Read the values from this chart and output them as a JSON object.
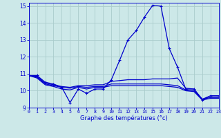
{
  "xlabel": "Graphe des températures (°c)",
  "background_color": "#cce8e8",
  "line_color": "#0000cc",
  "grid_color": "#aacccc",
  "xlim": [
    0,
    23
  ],
  "ylim": [
    9,
    15.2
  ],
  "yticks": [
    9,
    10,
    11,
    12,
    13,
    14,
    15
  ],
  "xticks": [
    0,
    1,
    2,
    3,
    4,
    5,
    6,
    7,
    8,
    9,
    10,
    11,
    12,
    13,
    14,
    15,
    16,
    17,
    18,
    19,
    20,
    21,
    22,
    23
  ],
  "curve1_x": [
    0,
    1,
    2,
    3,
    4,
    5,
    6,
    7,
    8,
    9,
    10,
    11,
    12,
    13,
    14,
    15,
    16,
    17,
    18,
    19,
    20,
    21,
    22,
    23
  ],
  "curve1_y": [
    10.9,
    10.9,
    10.5,
    10.4,
    10.2,
    9.3,
    10.1,
    9.85,
    10.1,
    10.1,
    10.65,
    11.8,
    13.0,
    13.55,
    14.35,
    15.05,
    15.0,
    12.5,
    11.4,
    10.1,
    10.1,
    9.45,
    9.7,
    9.7
  ],
  "curve2_x": [
    0,
    1,
    2,
    3,
    4,
    5,
    6,
    7,
    8,
    9,
    10,
    11,
    12,
    13,
    14,
    15,
    16,
    17,
    18,
    19,
    20,
    21,
    22,
    23
  ],
  "curve2_y": [
    10.9,
    10.85,
    10.45,
    10.35,
    10.25,
    10.2,
    10.3,
    10.3,
    10.35,
    10.35,
    10.55,
    10.6,
    10.65,
    10.65,
    10.65,
    10.7,
    10.7,
    10.7,
    10.75,
    10.15,
    10.1,
    9.5,
    9.7,
    9.7
  ],
  "curve3_x": [
    0,
    1,
    2,
    3,
    4,
    5,
    6,
    7,
    8,
    9,
    10,
    11,
    12,
    13,
    14,
    15,
    16,
    17,
    18,
    19,
    20,
    21,
    22,
    23
  ],
  "curve3_y": [
    10.9,
    10.8,
    10.4,
    10.3,
    10.2,
    10.15,
    10.25,
    10.2,
    10.25,
    10.25,
    10.4,
    10.4,
    10.4,
    10.4,
    10.4,
    10.4,
    10.4,
    10.35,
    10.3,
    10.05,
    10.0,
    9.5,
    9.6,
    9.6
  ],
  "curve4_x": [
    0,
    1,
    2,
    3,
    4,
    5,
    6,
    7,
    8,
    9,
    10,
    11,
    12,
    13,
    14,
    15,
    16,
    17,
    18,
    19,
    20,
    21,
    22,
    23
  ],
  "curve4_y": [
    10.9,
    10.75,
    10.35,
    10.25,
    10.1,
    10.05,
    10.2,
    10.1,
    10.2,
    10.2,
    10.3,
    10.3,
    10.3,
    10.3,
    10.3,
    10.3,
    10.3,
    10.25,
    10.2,
    10.0,
    9.95,
    9.45,
    9.55,
    9.55
  ]
}
